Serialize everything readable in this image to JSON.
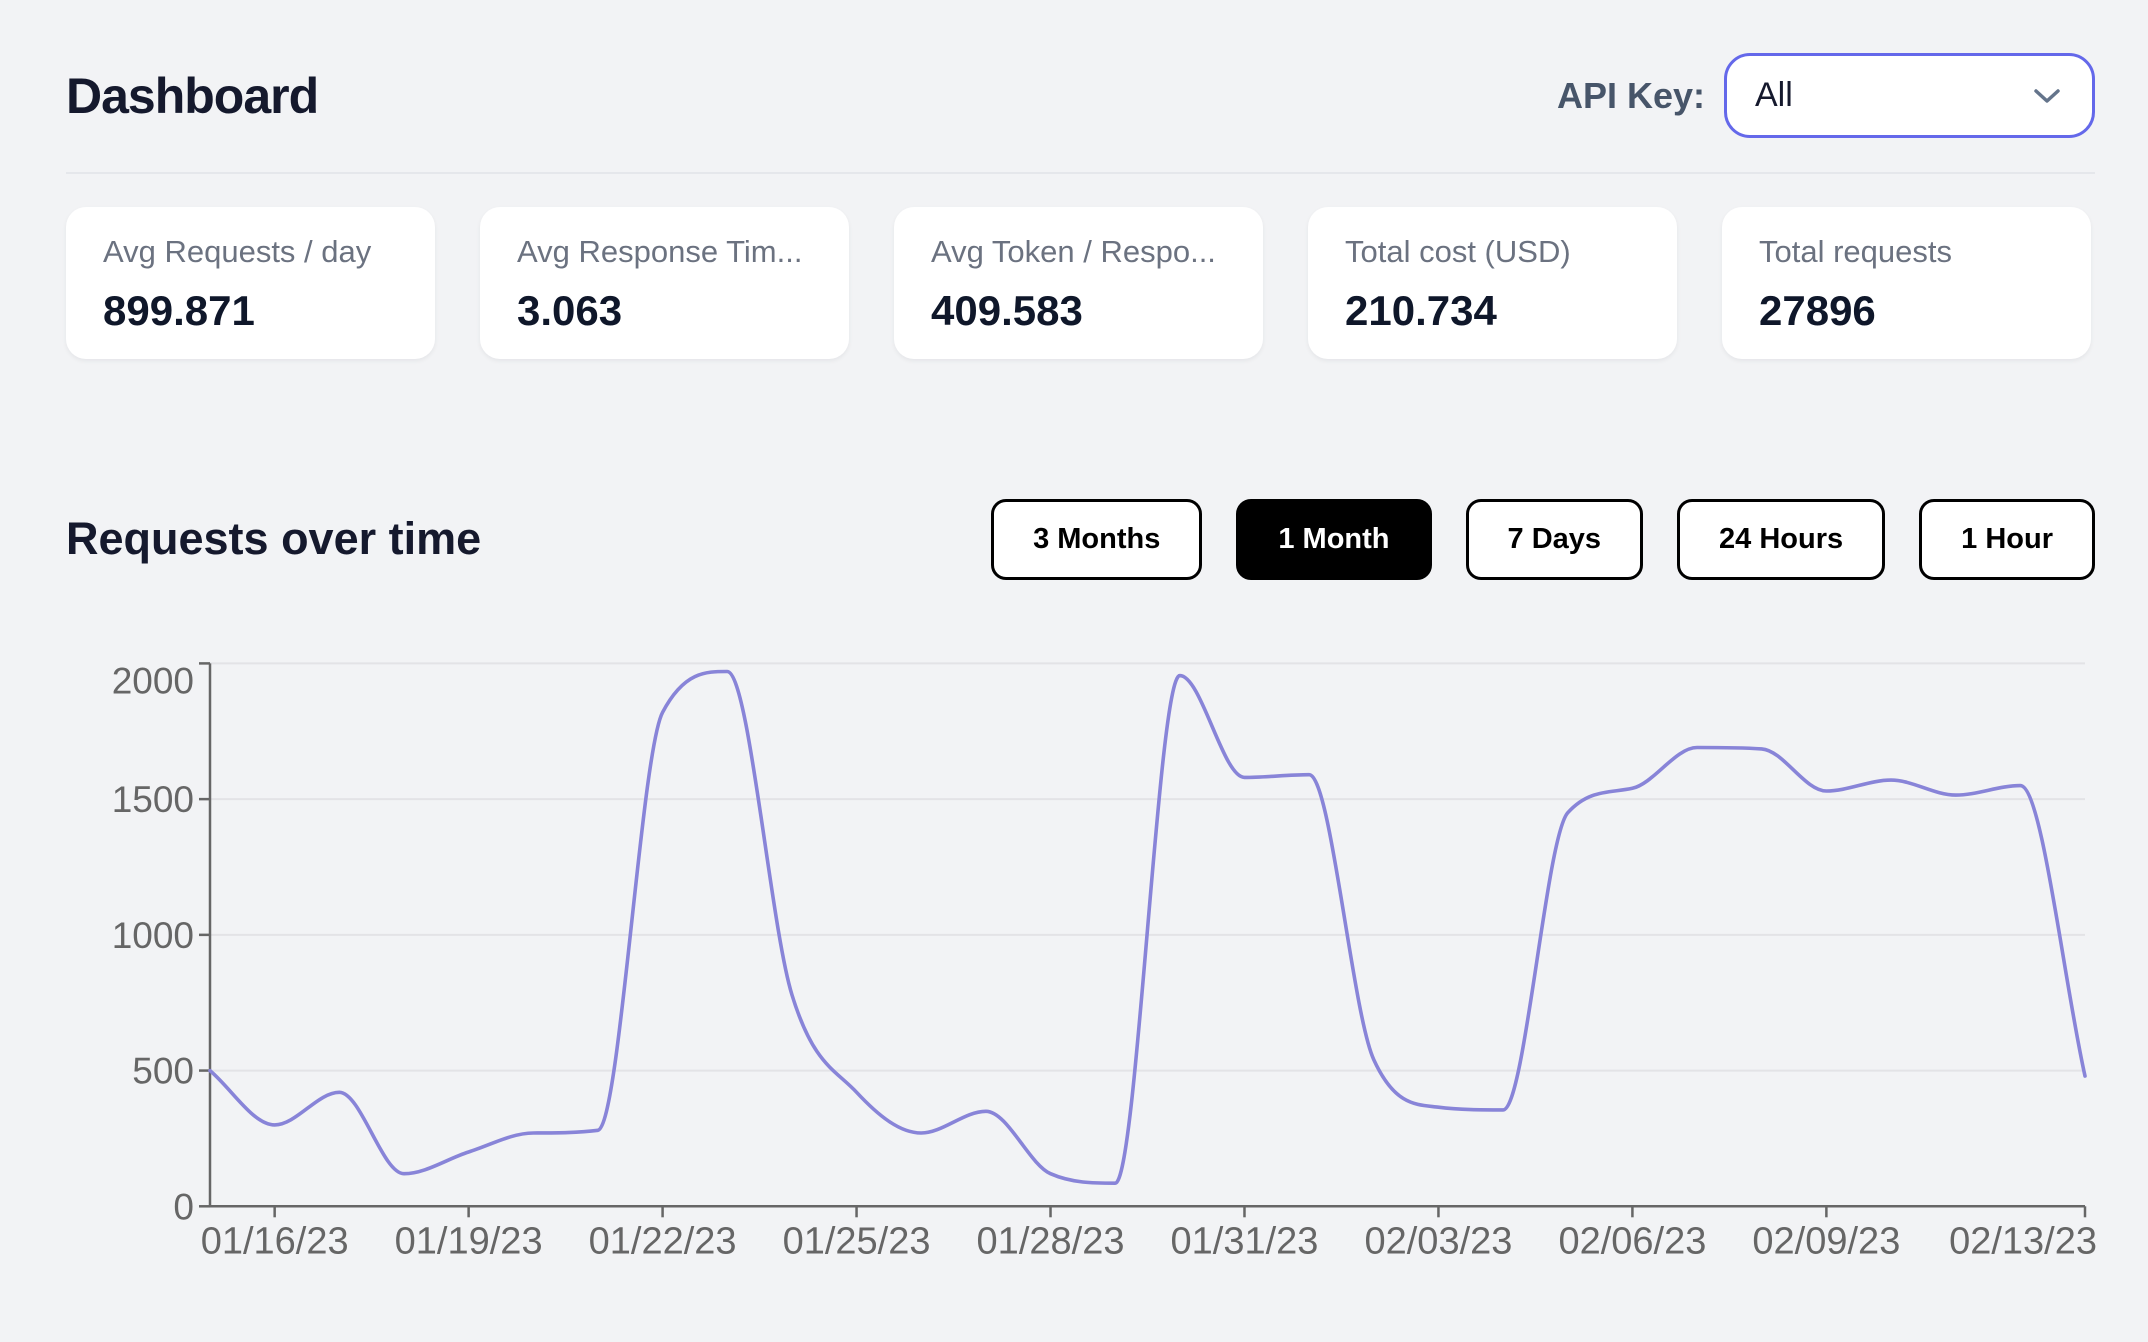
{
  "header": {
    "title": "Dashboard",
    "api_key_label": "API Key:",
    "api_key_value": "All"
  },
  "stats": [
    {
      "label": "Avg Requests / day",
      "value": "899.871"
    },
    {
      "label": "Avg Response Tim...",
      "value": "3.063"
    },
    {
      "label": "Avg Token / Respo...",
      "value": "409.583"
    },
    {
      "label": "Total cost (USD)",
      "value": "210.734"
    },
    {
      "label": "Total requests",
      "value": "27896"
    }
  ],
  "section": {
    "title": "Requests over time"
  },
  "ranges": {
    "options": [
      "3 Months",
      "1 Month",
      "7 Days",
      "24 Hours",
      "1 Hour"
    ],
    "active": "1 Month"
  },
  "chart_data": {
    "type": "line",
    "title": "Requests over time",
    "x": [
      "01/15/23",
      "01/16/23",
      "01/17/23",
      "01/18/23",
      "01/19/23",
      "01/20/23",
      "01/21/23",
      "01/22/23",
      "01/23/23",
      "01/24/23",
      "01/25/23",
      "01/26/23",
      "01/27/23",
      "01/28/23",
      "01/29/23",
      "01/30/23",
      "01/31/23",
      "02/01/23",
      "02/02/23",
      "02/03/23",
      "02/04/23",
      "02/05/23",
      "02/06/23",
      "02/07/23",
      "02/08/23",
      "02/09/23",
      "02/10/23",
      "02/11/23",
      "02/12/23",
      "02/13/23"
    ],
    "series": [
      {
        "name": "requests",
        "values": [
          500,
          300,
          420,
          120,
          200,
          270,
          280,
          1820,
          1970,
          780,
          420,
          270,
          350,
          120,
          85,
          1955,
          1580,
          1590,
          540,
          365,
          355,
          1450,
          1540,
          1690,
          1685,
          1530,
          1570,
          1515,
          1550,
          480
        ]
      }
    ],
    "xticks": {
      "indexes": [
        1,
        4,
        7,
        10,
        13,
        16,
        19,
        22,
        25,
        29
      ],
      "labels": [
        "01/16/23",
        "01/19/23",
        "01/22/23",
        "01/25/23",
        "01/28/23",
        "01/31/23",
        "02/03/23",
        "02/06/23",
        "02/09/23",
        "02/13/23"
      ]
    },
    "yticks": [
      0,
      500,
      1000,
      1500,
      2000
    ],
    "ylim": [
      0,
      2000
    ],
    "line_color": "#8884d8",
    "axis_color": "#666666",
    "grid_color": "#e3e3e6",
    "grid": "horizontal",
    "legend": "none"
  }
}
